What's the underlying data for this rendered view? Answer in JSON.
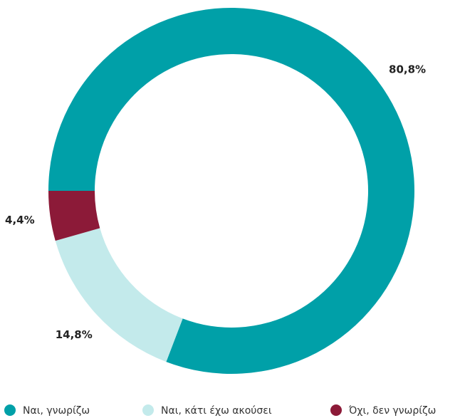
{
  "chart_data": {
    "type": "donut",
    "categories": [
      "Ναι, γνωρίζω",
      "Ναι, κάτι έχω ακούσει",
      "Όχι, δεν γνωρίζω"
    ],
    "values": [
      80.8,
      14.8,
      4.4
    ],
    "value_labels": [
      "80,8%",
      "14,8%",
      "4,4%"
    ],
    "colors": [
      "#00a0a8",
      "#c3eaeb",
      "#8c1a38"
    ],
    "legend": "bottom"
  }
}
